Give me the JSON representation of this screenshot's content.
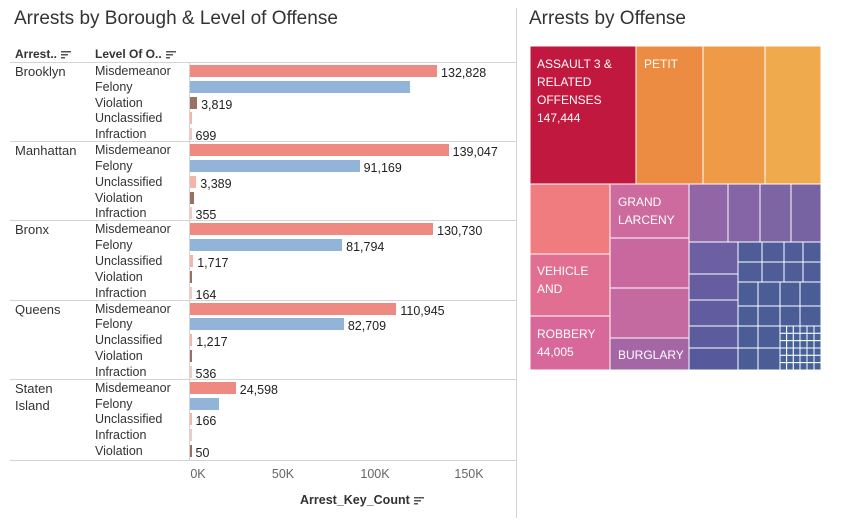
{
  "left_chart": {
    "title": "Arrests by Borough & Level of Offense",
    "col1_header": "Arrest..",
    "col2_header": "Level Of O..",
    "axis_title": "Arrest_Key_Count",
    "ticks": [
      "0K",
      "50K",
      "100K",
      "150K"
    ]
  },
  "right_chart": {
    "title": "Arrests by Offense",
    "labels": {
      "assault": [
        "ASSAULT 3 &",
        "RELATED",
        "OFFENSES",
        "147,444"
      ],
      "petit": [
        "PETIT"
      ],
      "grand": [
        "GRAND",
        "LARCENY"
      ],
      "vehicle": [
        "VEHICLE",
        "AND"
      ],
      "robbery": [
        "ROBBERY",
        "44,005"
      ],
      "burglary": [
        "BURGLARY"
      ]
    }
  },
  "colors": {
    "Misdemeanor": "#ee8a82",
    "Felony": "#92b4d9",
    "Violation": "#9b6f63",
    "Unclassified": "#f6b3a8",
    "Infraction": "#f3c8c0"
  },
  "chart_data": [
    {
      "type": "bar",
      "orientation": "horizontal",
      "title": "Arrests by Borough & Level of Offense",
      "xlabel": "Arrest_Key_Count",
      "xlim": [
        0,
        175000
      ],
      "groups": [
        {
          "name": "Brooklyn",
          "rows": [
            {
              "level": "Misdemeanor",
              "value": 132828,
              "label": "132,828"
            },
            {
              "level": "Felony",
              "value": 118500,
              "label": ""
            },
            {
              "level": "Violation",
              "value": 3819,
              "label": "3,819"
            },
            {
              "level": "Unclassified",
              "value": 700,
              "label": ""
            },
            {
              "level": "Infraction",
              "value": 699,
              "label": "699"
            }
          ]
        },
        {
          "name": "Manhattan",
          "rows": [
            {
              "level": "Misdemeanor",
              "value": 139047,
              "label": "139,047"
            },
            {
              "level": "Felony",
              "value": 91169,
              "label": "91,169"
            },
            {
              "level": "Unclassified",
              "value": 3389,
              "label": "3,389"
            },
            {
              "level": "Violation",
              "value": 1900,
              "label": ""
            },
            {
              "level": "Infraction",
              "value": 355,
              "label": "355"
            }
          ]
        },
        {
          "name": "Bronx",
          "rows": [
            {
              "level": "Misdemeanor",
              "value": 130730,
              "label": "130,730"
            },
            {
              "level": "Felony",
              "value": 81794,
              "label": "81,794"
            },
            {
              "level": "Unclassified",
              "value": 1717,
              "label": "1,717"
            },
            {
              "level": "Violation",
              "value": 200,
              "label": ""
            },
            {
              "level": "Infraction",
              "value": 164,
              "label": "164"
            }
          ]
        },
        {
          "name": "Queens",
          "rows": [
            {
              "level": "Misdemeanor",
              "value": 110945,
              "label": "110,945"
            },
            {
              "level": "Felony",
              "value": 82709,
              "label": "82,709"
            },
            {
              "level": "Unclassified",
              "value": 1217,
              "label": "1,217"
            },
            {
              "level": "Violation",
              "value": 700,
              "label": ""
            },
            {
              "level": "Infraction",
              "value": 536,
              "label": "536"
            }
          ]
        },
        {
          "name": "Staten Island",
          "rows": [
            {
              "level": "Misdemeanor",
              "value": 24598,
              "label": "24,598"
            },
            {
              "level": "Felony",
              "value": 15800,
              "label": ""
            },
            {
              "level": "Unclassified",
              "value": 166,
              "label": "166"
            },
            {
              "level": "Infraction",
              "value": 60,
              "label": ""
            },
            {
              "level": "Violation",
              "value": 50,
              "label": "50"
            }
          ]
        }
      ]
    },
    {
      "type": "treemap",
      "title": "Arrests by Offense",
      "items": [
        {
          "name": "ASSAULT 3 & RELATED OFFENSES",
          "value": 147444
        },
        {
          "name": "PETIT",
          "value": null
        },
        {
          "name": "GRAND LARCENY",
          "value": null
        },
        {
          "name": "VEHICLE AND",
          "value": null
        },
        {
          "name": "ROBBERY",
          "value": 44005
        },
        {
          "name": "BURGLARY",
          "value": null
        }
      ]
    }
  ]
}
